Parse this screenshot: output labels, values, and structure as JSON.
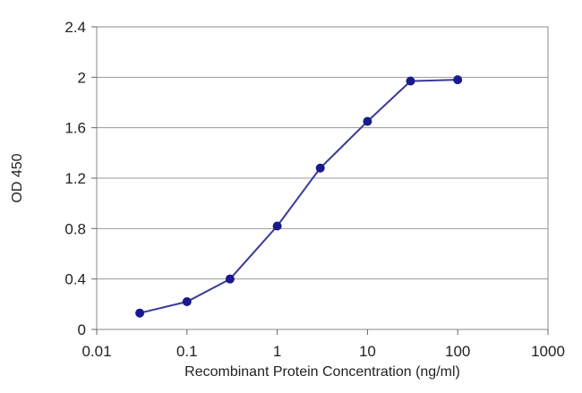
{
  "chart_data": {
    "type": "line",
    "title": "",
    "xlabel": "Recombinant Protein Concentration (ng/ml)",
    "ylabel": "OD 450",
    "x_scale": "log",
    "xlim": [
      0.01,
      1000
    ],
    "ylim": [
      0,
      2.4
    ],
    "x_ticks": [
      0.01,
      0.1,
      1,
      10,
      100,
      1000
    ],
    "x_tick_labels": [
      "0.01",
      "0.1",
      "1",
      "10",
      "100",
      "1000"
    ],
    "y_ticks": [
      0,
      0.4,
      0.8,
      1.2,
      1.6,
      2,
      2.4
    ],
    "y_tick_labels": [
      "0",
      "0.4",
      "0.8",
      "1.2",
      "1.6",
      "2",
      "2.4"
    ],
    "grid": "horizontal",
    "legend": "none",
    "series": [
      {
        "color": "#3a3a9a",
        "marker_color": "#1a1a8c",
        "x": [
          0.03,
          0.1,
          0.3,
          1,
          3,
          10,
          30,
          100
        ],
        "y": [
          0.13,
          0.22,
          0.4,
          0.82,
          1.28,
          1.65,
          1.97,
          1.98
        ]
      }
    ]
  }
}
